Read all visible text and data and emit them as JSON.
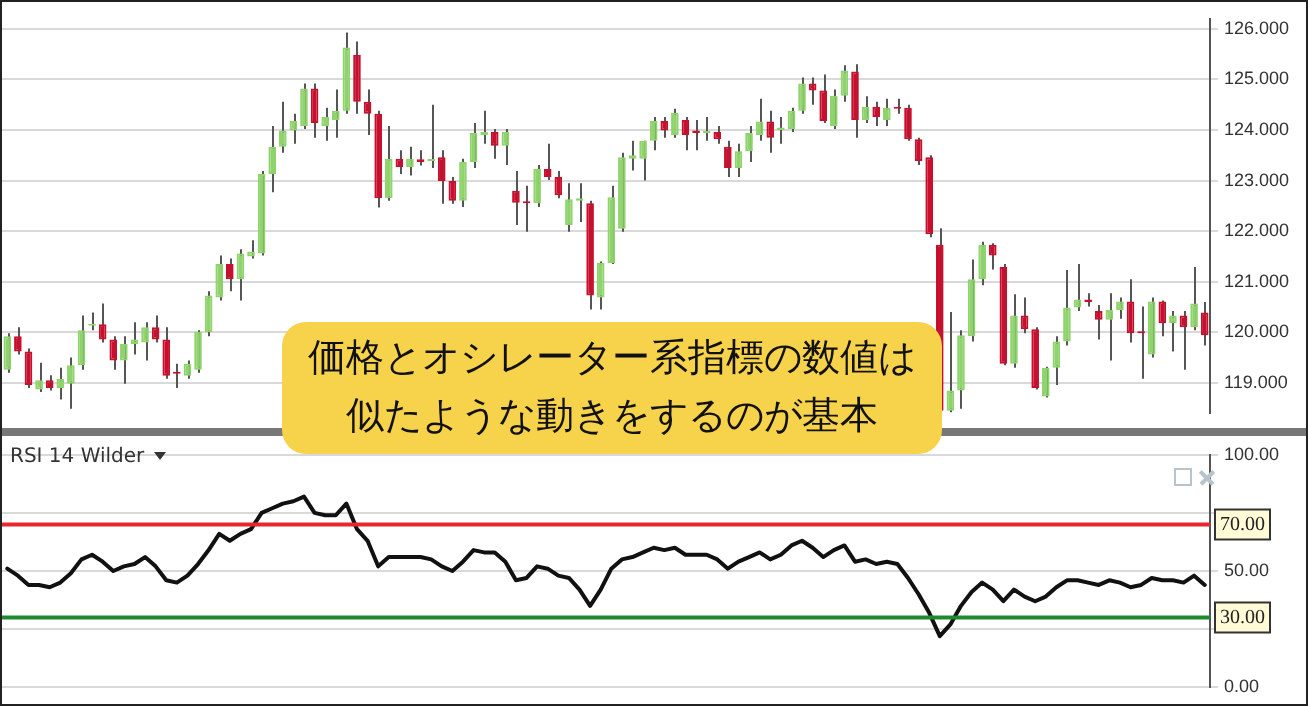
{
  "chart_data": [
    {
      "type": "candlestick",
      "categories": [
        null,
        null,
        null,
        null,
        null,
        null,
        null,
        null,
        null,
        null,
        null,
        null,
        null,
        null,
        null,
        null,
        null,
        null,
        null,
        null,
        null,
        null,
        null,
        null,
        null,
        null,
        null,
        null,
        null,
        null,
        null,
        null,
        null,
        null,
        null,
        null,
        null,
        null,
        null,
        null,
        null,
        null,
        null,
        null,
        null,
        null,
        null,
        null,
        null,
        null,
        null,
        null,
        null,
        null,
        null,
        null,
        null,
        null,
        null,
        null,
        null,
        null,
        null,
        null,
        null,
        null,
        null,
        null,
        null,
        null,
        null,
        null,
        null,
        null,
        null,
        null,
        null,
        null,
        null,
        null,
        null,
        null,
        null,
        null,
        null,
        null,
        null,
        null,
        null,
        null,
        null,
        null,
        null,
        null,
        null,
        null,
        null,
        null,
        null,
        null,
        null,
        null,
        null,
        null,
        null,
        null,
        null,
        null,
        null,
        null,
        null,
        null,
        null,
        null
      ],
      "ohlc": [
        [
          119.26,
          119.98,
          119.2,
          119.92
        ],
        [
          119.92,
          120.1,
          119.56,
          119.62
        ],
        [
          119.62,
          119.68,
          118.9,
          118.96
        ],
        [
          118.87,
          119.4,
          118.82,
          119.05
        ],
        [
          119.05,
          119.15,
          118.85,
          118.9
        ],
        [
          118.9,
          119.3,
          118.67,
          119.08
        ],
        [
          118.98,
          119.5,
          118.49,
          119.35
        ],
        [
          119.35,
          120.33,
          119.26,
          120.04
        ],
        [
          120.13,
          120.39,
          120.04,
          120.16
        ],
        [
          120.16,
          120.57,
          119.8,
          119.86
        ],
        [
          119.86,
          119.92,
          119.26,
          119.44
        ],
        [
          119.44,
          119.92,
          118.98,
          119.77
        ],
        [
          119.77,
          120.2,
          119.56,
          119.86
        ],
        [
          119.8,
          120.2,
          119.44,
          120.1
        ],
        [
          120.1,
          120.33,
          119.8,
          119.86
        ],
        [
          119.86,
          120.1,
          119.08,
          119.14
        ],
        [
          119.2,
          119.38,
          118.9,
          119.18
        ],
        [
          119.14,
          119.44,
          119.08,
          119.38
        ],
        [
          119.26,
          120.04,
          119.2,
          120.01
        ],
        [
          120.0,
          120.81,
          119.92,
          120.73
        ],
        [
          120.69,
          121.52,
          120.63,
          121.35
        ],
        [
          121.35,
          121.46,
          120.81,
          121.05
        ],
        [
          121.05,
          121.64,
          120.63,
          121.56
        ],
        [
          121.5,
          121.82,
          121.46,
          121.6
        ],
        [
          121.56,
          123.19,
          121.52,
          123.13
        ],
        [
          123.13,
          124.08,
          122.77,
          123.67
        ],
        [
          123.67,
          124.56,
          123.55,
          123.99
        ],
        [
          123.99,
          124.32,
          123.73,
          124.18
        ],
        [
          124.08,
          124.92,
          124.02,
          124.82
        ],
        [
          124.82,
          124.92,
          123.85,
          124.14
        ],
        [
          124.08,
          124.44,
          123.79,
          124.26
        ],
        [
          124.2,
          124.8,
          123.85,
          124.38
        ],
        [
          124.38,
          125.93,
          124.32,
          125.63
        ],
        [
          125.49,
          125.75,
          124.32,
          124.56
        ],
        [
          124.56,
          124.8,
          123.9,
          124.32
        ],
        [
          124.32,
          124.38,
          122.47,
          122.65
        ],
        [
          122.65,
          124.08,
          122.6,
          123.43
        ],
        [
          123.43,
          123.6,
          123.13,
          123.27
        ],
        [
          123.27,
          123.67,
          123.1,
          123.43
        ],
        [
          123.42,
          123.6,
          123.3,
          123.37
        ],
        [
          123.39,
          124.5,
          123.25,
          123.42
        ],
        [
          123.46,
          123.6,
          122.54,
          122.99
        ],
        [
          122.99,
          123.07,
          122.54,
          122.6
        ],
        [
          122.6,
          123.43,
          122.48,
          123.37
        ],
        [
          123.37,
          124.14,
          123.25,
          123.94
        ],
        [
          123.9,
          124.38,
          123.73,
          123.96
        ],
        [
          123.96,
          124.02,
          123.43,
          123.69
        ],
        [
          123.69,
          124.02,
          123.31,
          123.96
        ],
        [
          122.8,
          123.19,
          122.12,
          122.56
        ],
        [
          122.56,
          122.9,
          121.99,
          122.55
        ],
        [
          122.55,
          123.31,
          122.48,
          123.23
        ],
        [
          123.23,
          123.73,
          123.01,
          123.07
        ],
        [
          123.07,
          123.19,
          122.65,
          122.71
        ],
        [
          122.12,
          122.95,
          121.99,
          122.63
        ],
        [
          122.6,
          122.95,
          122.18,
          122.65
        ],
        [
          122.55,
          122.6,
          120.45,
          120.73
        ],
        [
          120.69,
          121.4,
          120.45,
          121.37
        ],
        [
          121.37,
          122.9,
          121.35,
          122.67
        ],
        [
          122.05,
          123.55,
          121.99,
          123.46
        ],
        [
          123.43,
          123.79,
          123.2,
          123.5
        ],
        [
          123.43,
          123.79,
          123.0,
          123.79
        ],
        [
          123.79,
          124.26,
          123.6,
          124.18
        ],
        [
          124.18,
          124.26,
          123.85,
          123.99
        ],
        [
          123.9,
          124.42,
          123.85,
          124.34
        ],
        [
          124.2,
          124.26,
          123.6,
          123.9
        ],
        [
          123.99,
          124.2,
          123.6,
          123.94
        ],
        [
          123.94,
          124.26,
          123.79,
          123.97
        ],
        [
          123.96,
          124.08,
          123.73,
          123.82
        ],
        [
          123.67,
          123.79,
          123.07,
          123.25
        ],
        [
          123.25,
          123.73,
          123.07,
          123.58
        ],
        [
          123.58,
          124.08,
          123.37,
          123.94
        ],
        [
          123.9,
          124.62,
          123.79,
          124.17
        ],
        [
          124.17,
          124.38,
          123.55,
          123.85
        ],
        [
          124.0,
          124.26,
          123.73,
          124.05
        ],
        [
          124.02,
          124.44,
          123.96,
          124.38
        ],
        [
          124.38,
          125.04,
          124.32,
          124.92
        ],
        [
          124.92,
          125.04,
          124.5,
          124.78
        ],
        [
          124.78,
          125.1,
          124.14,
          124.18
        ],
        [
          124.08,
          124.8,
          124.02,
          124.68
        ],
        [
          124.68,
          125.28,
          124.56,
          125.18
        ],
        [
          125.16,
          125.3,
          123.85,
          124.2
        ],
        [
          124.2,
          124.67,
          124.14,
          124.46
        ],
        [
          124.46,
          124.56,
          124.08,
          124.26
        ],
        [
          124.2,
          124.62,
          124.08,
          124.44
        ],
        [
          124.44,
          124.62,
          124.32,
          124.42
        ],
        [
          124.44,
          124.5,
          123.79,
          123.82
        ],
        [
          123.82,
          123.85,
          123.31,
          123.39
        ],
        [
          123.46,
          123.5,
          121.88,
          121.94
        ],
        [
          121.73,
          122.06,
          118.4,
          118.45
        ],
        [
          118.45,
          120.4,
          118.42,
          118.85
        ],
        [
          118.85,
          120.04,
          118.49,
          119.94
        ],
        [
          119.92,
          121.44,
          119.82,
          121.05
        ],
        [
          121.05,
          121.79,
          120.93,
          121.73
        ],
        [
          121.73,
          121.76,
          121.24,
          121.52
        ],
        [
          121.29,
          121.35,
          119.35,
          119.38
        ],
        [
          119.38,
          120.75,
          119.3,
          120.33
        ],
        [
          120.33,
          120.69,
          119.98,
          120.06
        ],
        [
          120.06,
          120.1,
          118.87,
          118.9
        ],
        [
          118.73,
          119.32,
          118.71,
          119.3
        ],
        [
          119.3,
          119.92,
          118.96,
          119.82
        ],
        [
          119.82,
          121.23,
          119.74,
          120.49
        ],
        [
          120.49,
          121.35,
          120.42,
          120.65
        ],
        [
          120.65,
          120.77,
          120.51,
          120.6
        ],
        [
          120.42,
          120.54,
          119.86,
          120.25
        ],
        [
          120.25,
          120.77,
          119.44,
          120.44
        ],
        [
          120.44,
          120.69,
          120.27,
          120.61
        ],
        [
          120.61,
          121.05,
          119.8,
          119.98
        ],
        [
          120.01,
          120.51,
          119.08,
          119.98
        ],
        [
          119.56,
          120.69,
          119.5,
          120.61
        ],
        [
          120.61,
          120.63,
          119.92,
          120.18
        ],
        [
          120.18,
          120.42,
          119.62,
          120.33
        ],
        [
          120.33,
          120.42,
          119.26,
          120.1
        ],
        [
          120.1,
          121.29,
          120.04,
          120.57
        ],
        [
          120.39,
          120.6,
          119.74,
          119.94
        ]
      ],
      "colors": [
        "#8ed36b",
        "#c8102e",
        "#c8102e",
        "#8ed36b",
        "#c8102e",
        "#8ed36b",
        "#8ed36b",
        "#8ed36b",
        "#8ed36b",
        "#c8102e",
        "#c8102e",
        "#8ed36b",
        "#8ed36b",
        "#8ed36b",
        "#c8102e",
        "#c8102e",
        "#c8102e",
        "#8ed36b",
        "#8ed36b",
        "#8ed36b",
        "#8ed36b",
        "#c8102e",
        "#8ed36b",
        "#8ed36b",
        "#8ed36b",
        "#8ed36b",
        "#8ed36b",
        "#8ed36b",
        "#8ed36b",
        "#c8102e",
        "#8ed36b",
        "#8ed36b",
        "#8ed36b",
        "#c8102e",
        "#c8102e",
        "#c8102e",
        "#8ed36b",
        "#c8102e",
        "#8ed36b",
        "#c8102e",
        "#8ed36b",
        "#c8102e",
        "#c8102e",
        "#8ed36b",
        "#8ed36b",
        "#8ed36b",
        "#c8102e",
        "#8ed36b",
        "#c8102e",
        "#c8102e",
        "#8ed36b",
        "#c8102e",
        "#c8102e",
        "#8ed36b",
        "#8ed36b",
        "#c8102e",
        "#8ed36b",
        "#8ed36b",
        "#8ed36b",
        "#8ed36b",
        "#8ed36b",
        "#8ed36b",
        "#c8102e",
        "#8ed36b",
        "#c8102e",
        "#c8102e",
        "#8ed36b",
        "#c8102e",
        "#c8102e",
        "#8ed36b",
        "#8ed36b",
        "#8ed36b",
        "#c8102e",
        "#8ed36b",
        "#8ed36b",
        "#8ed36b",
        "#c8102e",
        "#c8102e",
        "#8ed36b",
        "#8ed36b",
        "#c8102e",
        "#8ed36b",
        "#c8102e",
        "#8ed36b",
        "#c8102e",
        "#c8102e",
        "#c8102e",
        "#c8102e",
        "#c8102e",
        "#8ed36b",
        "#8ed36b",
        "#8ed36b",
        "#8ed36b",
        "#c8102e",
        "#c8102e",
        "#8ed36b",
        "#c8102e",
        "#c8102e",
        "#8ed36b",
        "#8ed36b",
        "#8ed36b",
        "#8ed36b",
        "#c8102e",
        "#c8102e",
        "#8ed36b",
        "#8ed36b",
        "#c8102e",
        "#c8102e",
        "#8ed36b",
        "#c8102e",
        "#8ed36b",
        "#c8102e",
        "#8ed36b",
        "#c8102e"
      ],
      "ylim": [
        118.4,
        126.2
      ],
      "yticks": [
        {
          "value": 119,
          "label": "119.000"
        },
        {
          "value": 120,
          "label": "120.000"
        },
        {
          "value": 121,
          "label": "121.000"
        },
        {
          "value": 122,
          "label": "122.000"
        },
        {
          "value": 123,
          "label": "123.000"
        },
        {
          "value": 124,
          "label": "124.000"
        },
        {
          "value": 125,
          "label": "125.000"
        },
        {
          "value": 126,
          "label": "126.000"
        }
      ],
      "grid": "y",
      "tick_labels": "y",
      "annotations": [
        "価格とオシレーター系指標の数値は",
        "似たような動きをするのが基本"
      ]
    },
    {
      "type": "line",
      "title": "RSI 14 Wilder",
      "categories": [
        null,
        null,
        null,
        null,
        null,
        null,
        null,
        null,
        null,
        null,
        null,
        null,
        null,
        null,
        null,
        null,
        null,
        null,
        null,
        null,
        null,
        null,
        null,
        null,
        null,
        null,
        null,
        null,
        null,
        null,
        null,
        null,
        null,
        null,
        null,
        null,
        null,
        null,
        null,
        null,
        null,
        null,
        null,
        null,
        null,
        null,
        null,
        null,
        null,
        null,
        null,
        null,
        null,
        null,
        null,
        null,
        null,
        null,
        null,
        null,
        null,
        null,
        null,
        null,
        null,
        null,
        null,
        null,
        null,
        null,
        null,
        null,
        null,
        null,
        null,
        null,
        null,
        null,
        null,
        null,
        null,
        null,
        null,
        null,
        null,
        null,
        null,
        null,
        null,
        null,
        null,
        null,
        null,
        null,
        null,
        null,
        null,
        null,
        null,
        null,
        null,
        null,
        null,
        null,
        null,
        null,
        null,
        null,
        null,
        null,
        null,
        null,
        null,
        null
      ],
      "series": [
        {
          "color": "#111111",
          "values": [
            51,
            48,
            44,
            44,
            43,
            45,
            49,
            55,
            57,
            54,
            50,
            52,
            53,
            56,
            52,
            46,
            45,
            48,
            53,
            59,
            66,
            63,
            66,
            68,
            75,
            77,
            79,
            80,
            82,
            75,
            74,
            74,
            79,
            68,
            63,
            52,
            56,
            56,
            56,
            56,
            55,
            52,
            50,
            54,
            59,
            58,
            58,
            54,
            46,
            47,
            52,
            51,
            48,
            47,
            42,
            35,
            42,
            51,
            55,
            56,
            58,
            60,
            59,
            60,
            57,
            57,
            57,
            55,
            51,
            54,
            56,
            58,
            55,
            57,
            61,
            63,
            60,
            56,
            59,
            61,
            54,
            55,
            53,
            54,
            53,
            47,
            40,
            32,
            22,
            27,
            35,
            41,
            45,
            42,
            37,
            42,
            39,
            37,
            39,
            43,
            46,
            46,
            45,
            44,
            46,
            45,
            43,
            44,
            47,
            46,
            46,
            45,
            48,
            44
          ]
        }
      ],
      "ylim": [
        0,
        100
      ],
      "yticks": [
        {
          "value": 0,
          "label": "0.00"
        },
        {
          "value": 25,
          "label": null
        },
        {
          "value": 50,
          "label": "50.00"
        },
        {
          "value": 75,
          "label": null
        },
        {
          "value": 100,
          "label": "100.00"
        }
      ],
      "grid": "y",
      "tick_labels": "y",
      "marker": "none",
      "ref_lines": [
        {
          "axis": "y",
          "value": 70,
          "label": "70.00",
          "color": "#e8262b"
        },
        {
          "axis": "y",
          "value": 30,
          "label": "30.00",
          "color": "#1e8a2e"
        }
      ]
    }
  ]
}
